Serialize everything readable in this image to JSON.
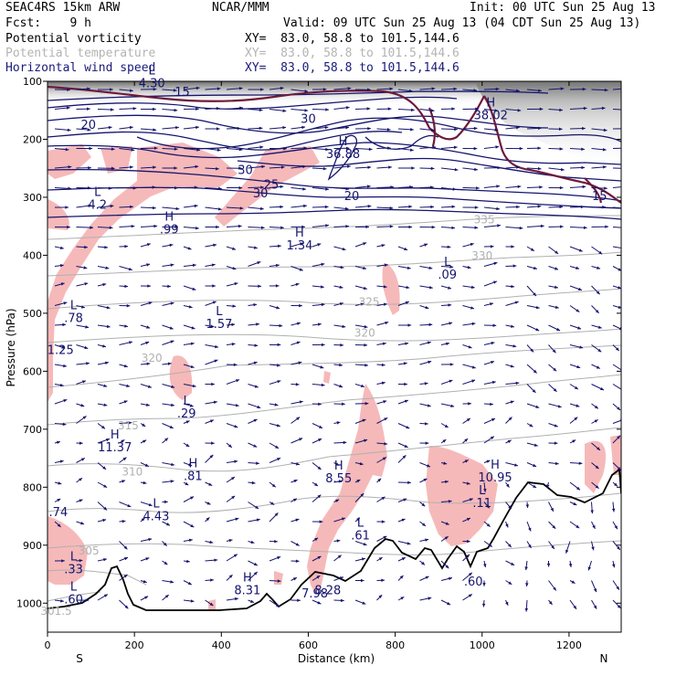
{
  "header": {
    "model": "SEAC4RS 15km ARW",
    "org": "NCAR/MMM",
    "init": "Init: 00 UTC Sun 25 Aug 13",
    "fcst": "Fcst:    9 h",
    "valid": "Valid: 09 UTC Sun 25 Aug 13 (04 CDT Sun 25 Aug 13)"
  },
  "fields": [
    {
      "name": "Potential vorticity",
      "xy": "XY=  83.0, 58.8 to 101.5,144.6",
      "color": "#000000"
    },
    {
      "name": "Potential temperature",
      "xy": "XY=  83.0, 58.8 to 101.5,144.6",
      "color": "#b4b4b4"
    },
    {
      "name": "Horizontal wind speed",
      "xy": "XY=  83.0, 58.8 to 101.5,144.6",
      "color": "#1a1a7a"
    }
  ],
  "chart_data": {
    "type": "cross-section",
    "xlabel": "Distance (km)",
    "ylabel": "Pressure (hPa)",
    "xlim": [
      0,
      1320
    ],
    "ylim": [
      1050,
      100
    ],
    "x_ticks": [
      0,
      200,
      400,
      600,
      800,
      1000,
      1200
    ],
    "y_ticks": [
      100,
      200,
      300,
      400,
      500,
      600,
      700,
      800,
      900,
      1000
    ],
    "x_end_labels": {
      "left": "S",
      "right": "N"
    },
    "colors": {
      "wind_speed": "#14146e",
      "theta": "#b0b0b0",
      "pv_fill": "#f5b8b8",
      "terrain": "#000000",
      "tropopause": "#6e1a3a"
    },
    "theta_labels": [
      {
        "x": 1005,
        "p": 345,
        "text": "335"
      },
      {
        "x": 1000,
        "p": 407,
        "text": "330"
      },
      {
        "x": 740,
        "p": 487,
        "text": "325"
      },
      {
        "x": 730,
        "p": 540,
        "text": "320"
      },
      {
        "x": 240,
        "p": 584,
        "text": "320"
      },
      {
        "x": 186,
        "p": 700,
        "text": "315"
      },
      {
        "x": 195,
        "p": 780,
        "text": "310"
      },
      {
        "x": 95,
        "p": 916,
        "text": "305"
      },
      {
        "x": 20,
        "p": 1020,
        "text": "301.5"
      }
    ],
    "wind_labels": [
      {
        "x": 94,
        "p": 182,
        "text": "20"
      },
      {
        "x": 600,
        "p": 172,
        "text": "30"
      },
      {
        "x": 455,
        "p": 260,
        "text": "30"
      },
      {
        "x": 515,
        "p": 285,
        "text": "25"
      },
      {
        "x": 490,
        "p": 300,
        "text": "30"
      },
      {
        "x": 700,
        "p": 305,
        "text": "20"
      },
      {
        "x": 310,
        "p": 125,
        "text": "15"
      },
      {
        "x": 1270,
        "p": 305,
        "text": "15"
      }
    ],
    "extrema": [
      {
        "label": "L",
        "x": 240,
        "p": 110,
        "value": "4.30"
      },
      {
        "label": "H",
        "x": 1020,
        "p": 165,
        "value": "38.02"
      },
      {
        "label": "H",
        "x": 680,
        "p": 232,
        "value": "36.88"
      },
      {
        "label": "L",
        "x": 115,
        "p": 320,
        "value": "4.2"
      },
      {
        "label": "H",
        "x": 280,
        "p": 362,
        "value": ".99"
      },
      {
        "label": "H",
        "x": 580,
        "p": 390,
        "value": "1.34"
      },
      {
        "label": "L",
        "x": 920,
        "p": 440,
        "value": ".09"
      },
      {
        "label": "L",
        "x": 60,
        "p": 515,
        "value": ".78"
      },
      {
        "label": "L",
        "x": 395,
        "p": 525,
        "value": "1.57"
      },
      {
        "label": "",
        "x": 30,
        "p": 570,
        "value": "1.25"
      },
      {
        "label": "L",
        "x": 320,
        "p": 680,
        "value": ".29"
      },
      {
        "label": "H",
        "x": 155,
        "p": 738,
        "value": "11.37"
      },
      {
        "label": "H",
        "x": 335,
        "p": 788,
        "value": ".81"
      },
      {
        "label": "H",
        "x": 670,
        "p": 792,
        "value": "8.55"
      },
      {
        "label": "H",
        "x": 1030,
        "p": 790,
        "value": "10.95"
      },
      {
        "label": "L",
        "x": 1000,
        "p": 834,
        "value": ".11"
      },
      {
        "label": "",
        "x": 25,
        "p": 850,
        "value": ".74"
      },
      {
        "label": "L",
        "x": 250,
        "p": 857,
        "value": "4.43"
      },
      {
        "label": "L",
        "x": 720,
        "p": 890,
        "value": ".61"
      },
      {
        "label": "L",
        "x": 60,
        "p": 948,
        "value": ".33"
      },
      {
        "label": "H",
        "x": 460,
        "p": 985,
        "value": "8.31"
      },
      {
        "label": "",
        "x": 615,
        "p": 990,
        "value": "7.98"
      },
      {
        "label": "",
        "x": 645,
        "p": 985,
        "value": "8.28"
      },
      {
        "label": "L",
        "x": 60,
        "p": 1000,
        "value": ".60"
      },
      {
        "label": "",
        "x": 980,
        "p": 970,
        "value": ".60"
      }
    ]
  }
}
